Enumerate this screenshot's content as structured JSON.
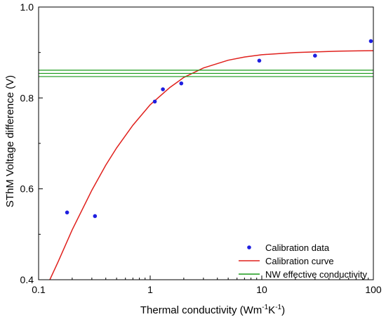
{
  "chart_data": {
    "type": "scatter",
    "xlabel": "Thermal conductivity (Wm",
    "xlabel_sup1": "-1",
    "xlabel_mid": "K",
    "xlabel_sup2": "-1",
    "xlabel_end": ")",
    "ylabel": "SThM Voltage difference (V)",
    "x_scale": "log",
    "xlim": [
      0.1,
      100
    ],
    "ylim": [
      0.4,
      1.0
    ],
    "x_ticks": [
      0.1,
      1,
      10,
      100
    ],
    "x_tick_labels": [
      "0.1",
      "1",
      "10",
      "100"
    ],
    "y_ticks": [
      0.4,
      0.6,
      0.8,
      1.0
    ],
    "y_tick_labels": [
      "0.4",
      "0.6",
      "0.8",
      "1.0"
    ],
    "grid": false,
    "legend_position": "bottom-right",
    "series": [
      {
        "name": "Calibration data",
        "kind": "points",
        "color": "#1f1fe0",
        "points": [
          [
            0.18,
            0.548
          ],
          [
            0.32,
            0.54
          ],
          [
            1.1,
            0.792
          ],
          [
            1.3,
            0.819
          ],
          [
            1.9,
            0.832
          ],
          [
            9.5,
            0.882
          ],
          [
            30,
            0.893
          ],
          [
            95,
            0.925
          ]
        ]
      },
      {
        "name": "Calibration curve",
        "kind": "line",
        "color": "#e0201c",
        "points": [
          [
            0.126,
            0.4
          ],
          [
            0.15,
            0.44
          ],
          [
            0.2,
            0.51
          ],
          [
            0.3,
            0.597
          ],
          [
            0.4,
            0.652
          ],
          [
            0.5,
            0.69
          ],
          [
            0.7,
            0.74
          ],
          [
            1.0,
            0.785
          ],
          [
            1.5,
            0.823
          ],
          [
            2.0,
            0.845
          ],
          [
            3.0,
            0.866
          ],
          [
            5.0,
            0.883
          ],
          [
            7.0,
            0.89
          ],
          [
            10,
            0.895
          ],
          [
            20,
            0.9
          ],
          [
            50,
            0.903
          ],
          [
            100,
            0.904
          ]
        ]
      },
      {
        "name": "NW effective conductivity",
        "kind": "hlines",
        "color": "#1a9a1a",
        "y_values": [
          0.847,
          0.854,
          0.861
        ]
      }
    ]
  }
}
